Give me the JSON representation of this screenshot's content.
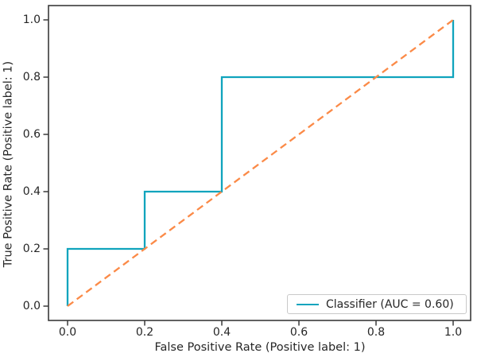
{
  "chart_data": {
    "type": "line",
    "title": "",
    "xlabel": "False Positive Rate (Positive label: 1)",
    "ylabel": "True Positive Rate (Positive label: 1)",
    "xlim": [
      -0.05,
      1.05
    ],
    "ylim": [
      -0.05,
      1.05
    ],
    "grid": false,
    "x_ticks": [
      "0.0",
      "0.2",
      "0.4",
      "0.6",
      "0.8",
      "1.0"
    ],
    "y_ticks": [
      "0.0",
      "0.2",
      "0.4",
      "0.6",
      "0.8",
      "1.0"
    ],
    "legend": {
      "position": "lower right",
      "entries": [
        {
          "label": "Classifier (AUC = 0.60)",
          "color": "#10a4bd",
          "style": "solid"
        }
      ]
    },
    "series": [
      {
        "name": "Classifier (AUC = 0.60)",
        "kind": "step-roc-curve",
        "color": "#10a4bd",
        "dash": "solid",
        "x": [
          0.0,
          0.0,
          0.2,
          0.2,
          0.4,
          0.4,
          1.0,
          1.0
        ],
        "y": [
          0.0,
          0.2,
          0.2,
          0.4,
          0.4,
          0.8,
          0.8,
          1.0
        ]
      },
      {
        "name": "chance-level",
        "kind": "diagonal-reference",
        "color": "#fb8a47",
        "dash": "dashed",
        "x": [
          0.0,
          1.0
        ],
        "y": [
          0.0,
          1.0
        ]
      }
    ],
    "colors": {
      "spine": "#3a3a3a",
      "tick": "#3a3a3a",
      "text": "#262626",
      "background": "#ffffff"
    }
  }
}
